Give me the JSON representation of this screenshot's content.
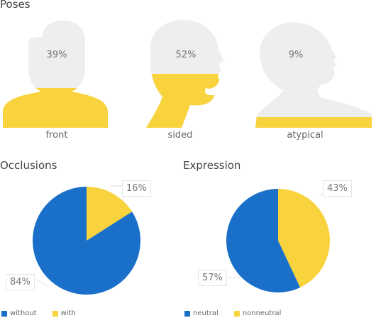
{
  "chart_data": [
    {
      "type": "pictogram",
      "title": "Poses",
      "categories": [
        "front",
        "sided",
        "atypical"
      ],
      "values": [
        39,
        52,
        9
      ],
      "value_labels": [
        "39%",
        "52%",
        "9%"
      ],
      "colors": {
        "fill": "#f9d33d",
        "empty": "#eeeeee"
      }
    },
    {
      "type": "pie",
      "title": "Occlusions",
      "categories": [
        "without",
        "with"
      ],
      "values": [
        84,
        16
      ],
      "value_labels": [
        "84%",
        "16%"
      ],
      "colors": [
        "#1a70c9",
        "#f9d33d"
      ],
      "legend": "bottom-left"
    },
    {
      "type": "pie",
      "title": "Expression",
      "categories": [
        "neutral",
        "nonneutral"
      ],
      "values": [
        57,
        43
      ],
      "value_labels": [
        "57%",
        "43%"
      ],
      "colors": [
        "#1a70c9",
        "#f9d33d"
      ],
      "legend": "bottom-left"
    }
  ]
}
